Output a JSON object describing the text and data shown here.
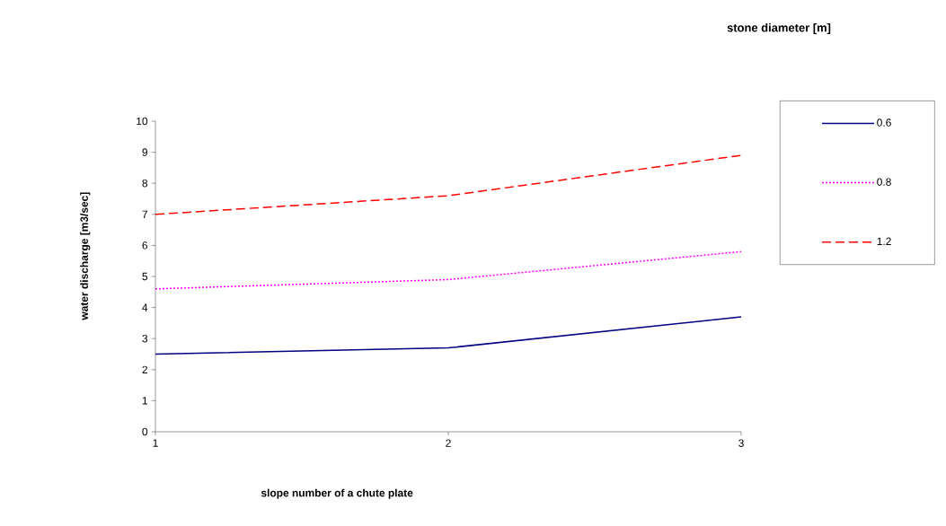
{
  "chart_data": {
    "type": "line",
    "legend_title": "stone diameter [m]",
    "xlabel": "slope number of a chute plate",
    "ylabel": "water discharge  [m3/sec]",
    "x": [
      1,
      2,
      3
    ],
    "xlim": [
      1,
      3
    ],
    "xticks": [
      1,
      2,
      3
    ],
    "ylim": [
      0,
      10
    ],
    "yticks": [
      0,
      1,
      2,
      3,
      4,
      5,
      6,
      7,
      8,
      9,
      10
    ],
    "series": [
      {
        "name": "0.6",
        "color": "#000080",
        "line_style": "solid",
        "values": [
          2.5,
          2.7,
          3.7
        ]
      },
      {
        "name": "0.8",
        "color": "#ff00ff",
        "line_style": "dotted",
        "values": [
          4.6,
          4.9,
          5.8
        ]
      },
      {
        "name": "1.2",
        "color": "#ff0000",
        "line_style": "dashed",
        "values": [
          7.0,
          7.6,
          8.9
        ]
      }
    ],
    "legend": "right",
    "grid": false,
    "marker": "none"
  }
}
